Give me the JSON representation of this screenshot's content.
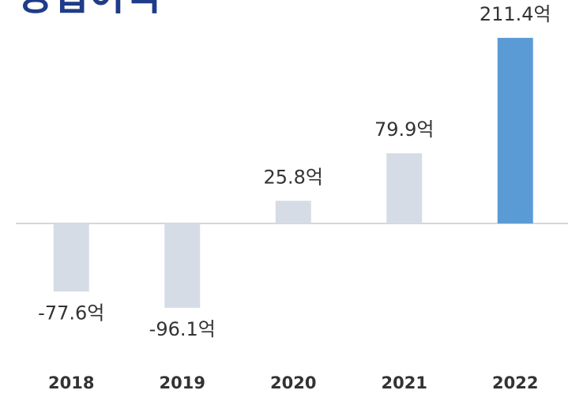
{
  "chart_data": {
    "type": "bar",
    "title": "영업이익",
    "categories": [
      "2018",
      "2019",
      "2020",
      "2021",
      "2022"
    ],
    "values": [
      -77.6,
      -96.1,
      25.8,
      79.9,
      211.4
    ],
    "value_labels": [
      "-77.6억",
      "-96.1억",
      "25.8억",
      "79.9억",
      "211.4억"
    ],
    "colors": [
      "#d6dce6",
      "#d6dce6",
      "#d6dce6",
      "#d6dce6",
      "#5b9bd5"
    ]
  }
}
